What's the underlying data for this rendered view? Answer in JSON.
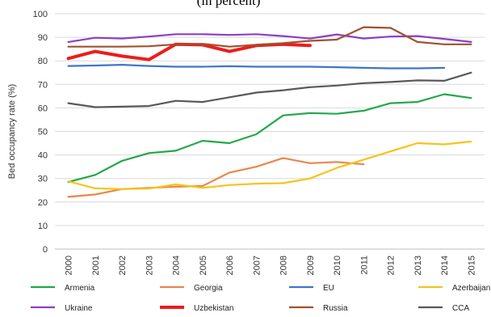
{
  "chart_data": {
    "type": "line",
    "title": "(in percent)",
    "ylabel": "Bed occupancy rate (%)",
    "xlabel": "",
    "ylim": [
      0,
      100
    ],
    "yticks": [
      0,
      10,
      20,
      30,
      40,
      50,
      60,
      70,
      80,
      90,
      100
    ],
    "grid": true,
    "legend_position": "bottom",
    "x": [
      "2000",
      "2001",
      "2002",
      "2003",
      "2004",
      "2005",
      "2006",
      "2007",
      "2008",
      "2009",
      "2010",
      "2011",
      "2012",
      "2013",
      "2014",
      "2015"
    ],
    "series": [
      {
        "name": "Armenia",
        "color": "#22a84a",
        "values": [
          28.5,
          31.5,
          37.5,
          40.8,
          41.8,
          46.0,
          45.0,
          48.8,
          56.8,
          57.8,
          57.5,
          58.8,
          62.0,
          62.5,
          65.8,
          64.2
        ]
      },
      {
        "name": "Georgia",
        "color": "#e8874a",
        "values": [
          22.2,
          23.2,
          25.5,
          26.0,
          26.5,
          26.8,
          32.5,
          35.0,
          38.7,
          36.5,
          37.0,
          36.0,
          null,
          null,
          null,
          null
        ]
      },
      {
        "name": "EU",
        "color": "#3f76c9",
        "values": [
          77.8,
          78.0,
          78.3,
          77.8,
          77.5,
          77.5,
          77.7,
          77.5,
          77.5,
          77.5,
          77.3,
          77.0,
          76.8,
          76.8,
          77.0,
          null
        ]
      },
      {
        "name": "Azerbaijan",
        "color": "#f5c41a",
        "values": [
          28.8,
          25.8,
          25.5,
          25.7,
          27.5,
          26.0,
          27.2,
          27.8,
          28.0,
          30.0,
          34.5,
          38.0,
          41.5,
          45.0,
          44.5,
          45.7
        ]
      },
      {
        "name": "Ukraine",
        "color": "#8d3fc4",
        "values": [
          88.0,
          89.8,
          89.5,
          90.3,
          91.3,
          91.3,
          91.0,
          91.3,
          90.5,
          89.5,
          91.2,
          89.5,
          90.3,
          90.5,
          89.3,
          88.0
        ]
      },
      {
        "name": "Uzbekistan",
        "color": "#ee1c1c",
        "values": [
          81.0,
          84.0,
          82.0,
          80.5,
          87.0,
          86.8,
          84.0,
          86.5,
          87.0,
          86.5,
          null,
          null,
          null,
          null,
          null,
          null
        ]
      },
      {
        "name": "Russia",
        "color": "#a0522d",
        "values": [
          86.0,
          86.0,
          86.0,
          86.2,
          87.0,
          87.2,
          86.0,
          86.8,
          87.5,
          88.5,
          89.0,
          94.3,
          94.0,
          88.0,
          87.0,
          87.0
        ]
      },
      {
        "name": "CCA",
        "color": "#595959",
        "values": [
          62.0,
          60.3,
          60.5,
          60.8,
          63.0,
          62.5,
          64.5,
          66.5,
          67.5,
          68.8,
          69.5,
          70.5,
          71.0,
          71.7,
          71.5,
          75.0
        ]
      }
    ]
  }
}
